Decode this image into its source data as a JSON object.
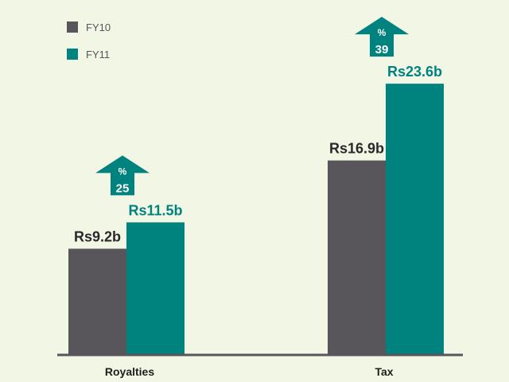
{
  "chart_data": {
    "type": "bar",
    "categories": [
      "Royalties",
      "Tax"
    ],
    "series": [
      {
        "name": "FY10",
        "values": [
          9.2,
          16.9
        ],
        "labels": [
          "Rs9.2b",
          "Rs16.9b"
        ],
        "color": "#58565b"
      },
      {
        "name": "FY11",
        "values": [
          11.5,
          23.6
        ],
        "labels": [
          "Rs11.5b",
          "Rs23.6b"
        ],
        "color": "#00827f"
      }
    ],
    "growth": [
      {
        "symbol": "%",
        "value": "25"
      },
      {
        "symbol": "%",
        "value": "39"
      }
    ],
    "title": "",
    "xlabel": "",
    "ylabel": "",
    "ylim": [
      0,
      25
    ],
    "grid": false,
    "legend": "top-left",
    "colors": {
      "background": "#f2f6e4",
      "axis": "#58565b",
      "label_fy10": "#2a282c",
      "label_fy11": "#00827f"
    }
  }
}
